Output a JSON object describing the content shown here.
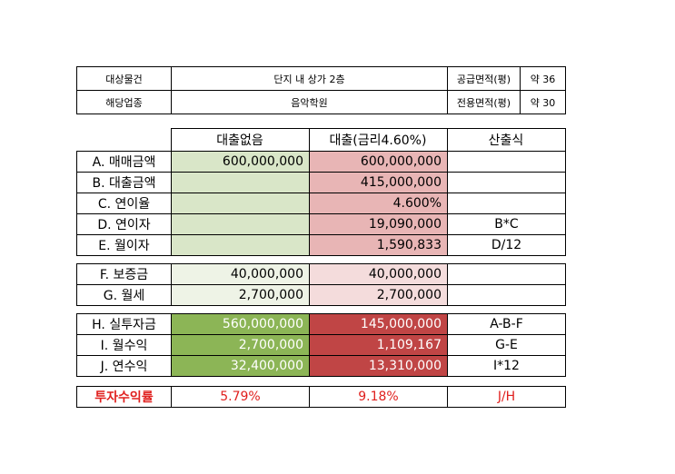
{
  "info": {
    "rows": [
      {
        "label": "대상물건",
        "value": "단지 내 상가 2층",
        "label2": "공급면적(평)",
        "value2": "약 36"
      },
      {
        "label": "해당업종",
        "value": "음악학원",
        "label2": "전용면적(평)",
        "value2": "약 30"
      }
    ]
  },
  "header": {
    "col1": "대출없음",
    "col2": "대출(금리4.60%)",
    "col3": "산출식"
  },
  "section1": [
    {
      "label": "A. 매매금액",
      "no_loan": "600,000,000",
      "loan": "600,000,000",
      "formula": ""
    },
    {
      "label": "B. 대출금액",
      "no_loan": "",
      "loan": "415,000,000",
      "formula": ""
    },
    {
      "label": "C. 연이율",
      "no_loan": "",
      "loan": "4.600%",
      "formula": ""
    },
    {
      "label": "D. 연이자",
      "no_loan": "",
      "loan": "19,090,000",
      "formula": "B*C"
    },
    {
      "label": "E. 월이자",
      "no_loan": "",
      "loan": "1,590,833",
      "formula": "D/12"
    }
  ],
  "section2": [
    {
      "label": "F. 보증금",
      "no_loan": "40,000,000",
      "loan": "40,000,000",
      "formula": ""
    },
    {
      "label": "G. 월세",
      "no_loan": "2,700,000",
      "loan": "2,700,000",
      "formula": ""
    }
  ],
  "section3": [
    {
      "label": "H. 실투자금",
      "no_loan": "560,000,000",
      "loan": "145,000,000",
      "formula": "A-B-F"
    },
    {
      "label": "I. 월수익",
      "no_loan": "2,700,000",
      "loan": "1,109,167",
      "formula": "G-E"
    },
    {
      "label": "J. 연수익",
      "no_loan": "32,400,000",
      "loan": "13,310,000",
      "formula": "I*12"
    }
  ],
  "result": {
    "label": "투자수익률",
    "no_loan": "5.79%",
    "loan": "9.18%",
    "formula": "J/H"
  },
  "colors": {
    "accent_red": "#e0201e",
    "green_dark": "#8cb556",
    "red_dark": "#c04545"
  }
}
